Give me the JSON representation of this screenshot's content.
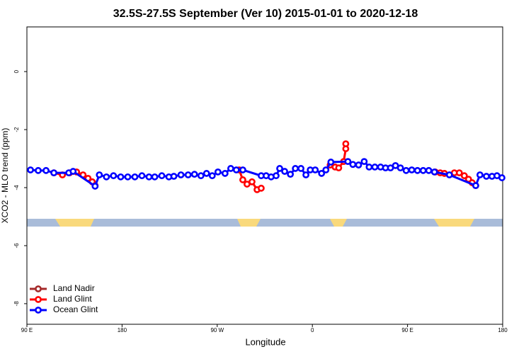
{
  "chart_data": {
    "type": "line",
    "title": "32.5S-27.5S September (Ver 10)   2015-01-01 to 2020-12-18",
    "x_label": "Longitude",
    "y_label": "XCO2 - MLO trend (ppm)",
    "xlim": [
      90,
      540
    ],
    "xticks": [
      {
        "value": 90,
        "label": "90 E"
      },
      {
        "value": 180,
        "label": "180"
      },
      {
        "value": 270,
        "label": "90 W"
      },
      {
        "value": 360,
        "label": "0"
      },
      {
        "value": 450,
        "label": "90 E"
      },
      {
        "value": 540,
        "label": "180"
      }
    ],
    "ylim": [
      -8.71,
      1.54
    ],
    "yticks": [
      0,
      -2,
      -4,
      -6,
      -8
    ],
    "legend": "bottom-left",
    "series": [
      {
        "name": "Land Nadir",
        "color": "#a52a2a",
        "x": [],
        "values": []
      },
      {
        "name": "Land Glint",
        "color": "#ff0000",
        "x": [
          115.5,
          123.6,
          130.3,
          137.0,
          143.1,
          147.8,
          151.8,
          154.5,
          200,
          290.8,
          294.2,
          298.2,
          302.9,
          307.7,
          311.6,
          350,
          376.8,
          381.5,
          384.9,
          389.6,
          391.6,
          391.6,
          450,
          476.2,
          480.9,
          484.9,
          494.3,
          499.0,
          503.7,
          507.7,
          511.1,
          514.5
        ],
        "values": [
          -3.49,
          -3.56,
          -3.49,
          -3.46,
          -3.56,
          -3.68,
          -3.8,
          -3.93,
          null,
          -3.39,
          -3.73,
          -3.88,
          -3.8,
          -4.07,
          -4.02,
          null,
          -3.22,
          -3.29,
          -3.32,
          -3.1,
          -2.66,
          -2.49,
          null,
          -3.46,
          -3.49,
          -3.51,
          -3.49,
          -3.49,
          -3.59,
          -3.71,
          -3.83,
          -3.93
        ]
      },
      {
        "name": "Ocean Glint",
        "color": "#0000ff",
        "x": [
          93.4,
          100.7,
          108.1,
          115.5,
          129.6,
          133.7,
          154.5,
          158.5,
          165.2,
          171.9,
          178.7,
          185.4,
          192.1,
          198.8,
          205.5,
          210.9,
          217.6,
          224.3,
          229.0,
          235.7,
          242.5,
          248.5,
          254.6,
          259.9,
          265.3,
          270.7,
          277.4,
          282.8,
          288.1,
          294.2,
          311.6,
          316.3,
          321.0,
          325.7,
          329.1,
          333.8,
          339.2,
          343.9,
          349.2,
          353.9,
          358.0,
          362.7,
          368.7,
          372.8,
          377.5,
          393.6,
          398.3,
          403.7,
          409.0,
          413.7,
          419.1,
          424.5,
          429.2,
          433.9,
          438.6,
          443.3,
          448.7,
          454.0,
          459.4,
          464.8,
          470.1,
          475.5,
          489.6,
          514.5,
          518.5,
          524.6,
          529.9,
          534.6,
          539.3
        ],
        "values": [
          -3.39,
          -3.41,
          -3.41,
          -3.49,
          -3.49,
          -3.44,
          -3.95,
          -3.56,
          -3.63,
          -3.59,
          -3.63,
          -3.63,
          -3.63,
          -3.59,
          -3.63,
          -3.63,
          -3.59,
          -3.63,
          -3.61,
          -3.56,
          -3.56,
          -3.54,
          -3.59,
          -3.51,
          -3.59,
          -3.46,
          -3.51,
          -3.34,
          -3.39,
          -3.39,
          -3.59,
          -3.59,
          -3.63,
          -3.59,
          -3.34,
          -3.44,
          -3.54,
          -3.34,
          -3.34,
          -3.56,
          -3.39,
          -3.39,
          -3.51,
          -3.39,
          -3.12,
          -3.1,
          -3.2,
          -3.22,
          -3.1,
          -3.29,
          -3.29,
          -3.29,
          -3.32,
          -3.32,
          -3.24,
          -3.32,
          -3.41,
          -3.39,
          -3.41,
          -3.41,
          -3.41,
          -3.46,
          -3.56,
          -3.93,
          -3.56,
          -3.61,
          -3.61,
          -3.59,
          -3.66
        ]
      }
    ]
  }
}
